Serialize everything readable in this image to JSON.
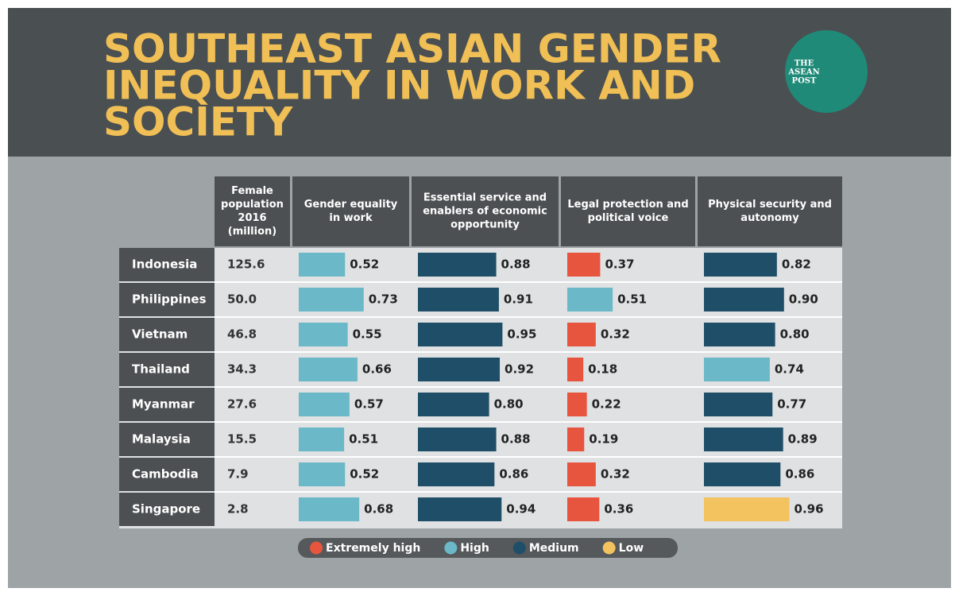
{
  "header": {
    "title": [
      "SOUTHEAST ASIAN GENDER",
      "INEQUALITY IN WORK AND",
      "SOCIETY"
    ],
    "logo": [
      "THE",
      "ASEAN",
      "POST"
    ]
  },
  "table": {
    "columns": [
      [
        "Female",
        "population",
        "2016",
        "(million)"
      ],
      [
        "Gender equality",
        "in work"
      ],
      [
        "Essential service and",
        "enablers of economic",
        "opportunity"
      ],
      [
        "Legal protection and",
        "political voice"
      ],
      [
        "Physical security and",
        "autonomy"
      ]
    ],
    "rows": [
      {
        "country": "Indonesia",
        "population": "125.6",
        "values": [
          0.52,
          0.88,
          0.37,
          0.82
        ],
        "value_labels": [
          "0.52",
          "0.88",
          "0.37",
          "0.82"
        ],
        "colors": [
          "#6bb8c8",
          "#1f4e68",
          "#e8553e",
          "#1f4e68"
        ]
      },
      {
        "country": "Philippines",
        "population": "50.0",
        "values": [
          0.73,
          0.91,
          0.51,
          0.9
        ],
        "value_labels": [
          "0.73",
          "0.91",
          "0.51",
          "0.90"
        ],
        "colors": [
          "#6bb8c8",
          "#1f4e68",
          "#6bb8c8",
          "#1f4e68"
        ]
      },
      {
        "country": "Vietnam",
        "population": "46.8",
        "values": [
          0.55,
          0.95,
          0.32,
          0.8
        ],
        "value_labels": [
          "0.55",
          "0.95",
          "0.32",
          "0.80"
        ],
        "colors": [
          "#6bb8c8",
          "#1f4e68",
          "#e8553e",
          "#1f4e68"
        ]
      },
      {
        "country": "Thailand",
        "population": "34.3",
        "values": [
          0.66,
          0.92,
          0.18,
          0.74
        ],
        "value_labels": [
          "0.66",
          "0.92",
          "0.18",
          "0.74"
        ],
        "colors": [
          "#6bb8c8",
          "#1f4e68",
          "#e8553e",
          "#6bb8c8"
        ]
      },
      {
        "country": "Myanmar",
        "population": "27.6",
        "values": [
          0.57,
          0.8,
          0.22,
          0.77
        ],
        "value_labels": [
          "0.57",
          "0.80",
          "0.22",
          "0.77"
        ],
        "colors": [
          "#6bb8c8",
          "#1f4e68",
          "#e8553e",
          "#1f4e68"
        ]
      },
      {
        "country": "Malaysia",
        "population": "15.5",
        "values": [
          0.51,
          0.88,
          0.19,
          0.89
        ],
        "value_labels": [
          "0.51",
          "0.88",
          "0.19",
          "0.89"
        ],
        "colors": [
          "#6bb8c8",
          "#1f4e68",
          "#e8553e",
          "#1f4e68"
        ]
      },
      {
        "country": "Cambodia",
        "population": "7.9",
        "values": [
          0.52,
          0.86,
          0.32,
          0.86
        ],
        "value_labels": [
          "0.52",
          "0.86",
          "0.32",
          "0.86"
        ],
        "colors": [
          "#6bb8c8",
          "#1f4e68",
          "#e8553e",
          "#1f4e68"
        ]
      },
      {
        "country": "Singapore",
        "population": "2.8",
        "values": [
          0.68,
          0.94,
          0.36,
          0.96
        ],
        "value_labels": [
          "0.68",
          "0.94",
          "0.36",
          "0.96"
        ],
        "colors": [
          "#6bb8c8",
          "#1f4e68",
          "#e8553e",
          "#f2c35e"
        ]
      }
    ]
  },
  "legend": [
    {
      "name": "Extremely high",
      "color": "#e8553e"
    },
    {
      "name": "High",
      "color": "#6bb8c8"
    },
    {
      "name": "Medium",
      "color": "#1f4e68"
    },
    {
      "name": "Low",
      "color": "#f2c35e"
    }
  ]
}
